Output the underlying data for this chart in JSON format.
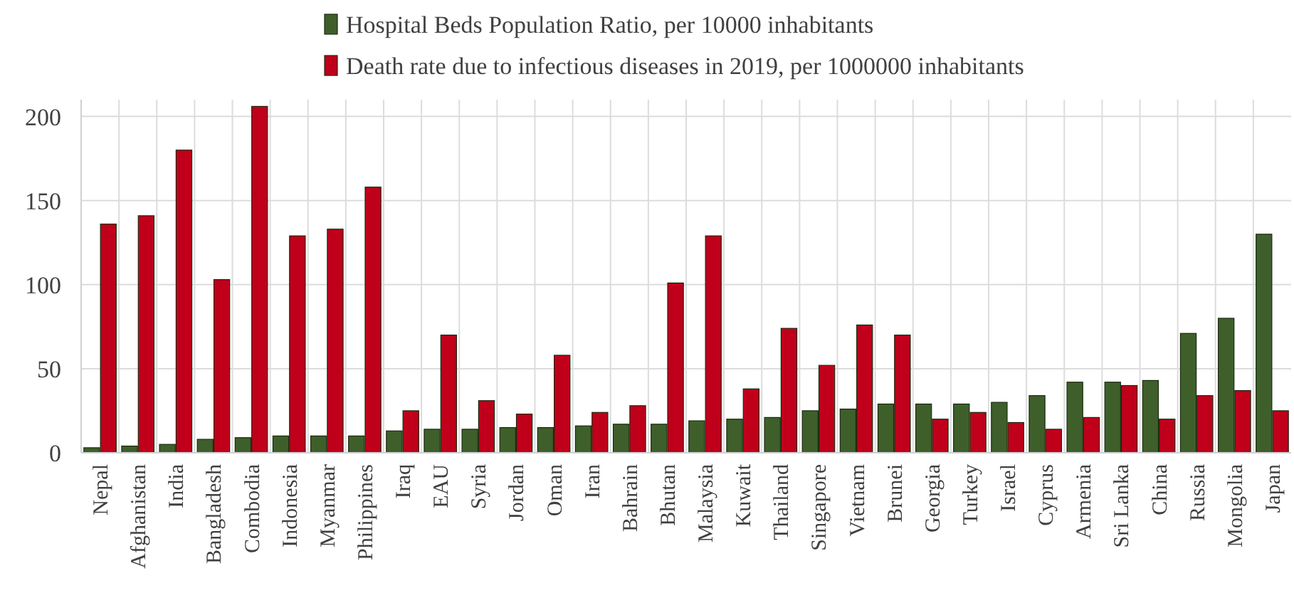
{
  "chart_data": {
    "type": "bar",
    "categories": [
      "Nepal",
      "Afghanistan",
      "India",
      "Bangladesh",
      "Combodia",
      "Indonesia",
      "Myanmar",
      "Philippines",
      "Iraq",
      "EAU",
      "Syria",
      "Jordan",
      "Oman",
      "Iran",
      "Bahrain",
      "Bhutan",
      "Malaysia",
      "Kuwait",
      "Thailand",
      "Singapore",
      "Vietnam",
      "Brunei",
      "Georgia",
      "Turkey",
      "Israel",
      "Cyprus",
      "Armenia",
      "Sri Lanka",
      "China",
      "Russia",
      "Mongolia",
      "Japan"
    ],
    "series": [
      {
        "name": "Hospital Beds Population Ratio, per 10000 inhabitants",
        "color": "#3e5f2a",
        "values": [
          3,
          4,
          5,
          8,
          9,
          10,
          10,
          10,
          13,
          14,
          14,
          15,
          15,
          16,
          17,
          17,
          19,
          20,
          21,
          25,
          26,
          29,
          29,
          29,
          30,
          34,
          42,
          42,
          43,
          71,
          80,
          130
        ]
      },
      {
        "name": "Death rate due to infectious diseases in 2019, per 1000000 inhabitants",
        "color": "#c0001a",
        "values": [
          136,
          141,
          180,
          103,
          206,
          129,
          133,
          158,
          25,
          70,
          31,
          23,
          58,
          24,
          28,
          101,
          129,
          38,
          74,
          52,
          76,
          70,
          20,
          24,
          18,
          14,
          21,
          40,
          20,
          34,
          37,
          25
        ]
      }
    ],
    "ylim": [
      0,
      210
    ],
    "yticks": [
      0,
      50,
      100,
      150,
      200
    ],
    "grid": true,
    "legend": "top"
  }
}
